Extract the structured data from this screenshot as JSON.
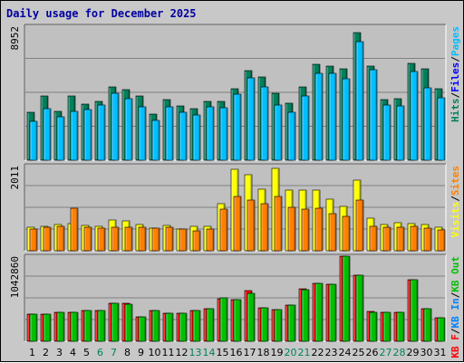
{
  "chart_data": {
    "type": "bar",
    "title": "Daily usage for December 2025",
    "days": [
      "1",
      "2",
      "3",
      "4",
      "5",
      "6",
      "7",
      "8",
      "9",
      "10",
      "11",
      "12",
      "13",
      "14",
      "15",
      "16",
      "17",
      "18",
      "19",
      "20",
      "21",
      "22",
      "23",
      "24",
      "25",
      "26",
      "27",
      "28",
      "29",
      "30",
      "31"
    ],
    "weekend_days": [
      "6",
      "7",
      "13",
      "14",
      "20",
      "21",
      "27",
      "28"
    ],
    "colors": {
      "hits": "#00805c",
      "files": "#0000ff",
      "pages": "#00c0ff",
      "visits": "#ffff00",
      "sites": "#ff8000",
      "kb_f": "#ff0000",
      "kb_in": "#0080ff",
      "kb_out": "#00c000",
      "weekday_label": "#000000",
      "weekend_label": "#00805c",
      "title": "#0000a0",
      "background": "#c8c8c8",
      "plot_background": "#c0c0c0",
      "gridline": "#808080"
    },
    "panels": [
      {
        "name": "usage",
        "ymax_label": "8952",
        "ymax": 8952,
        "legend": [
          {
            "text": "Hits",
            "color": "#00805c"
          },
          {
            "text": "/",
            "color": "#000000"
          },
          {
            "text": "Files",
            "color": "#0000ff"
          },
          {
            "text": "/",
            "color": "#000000"
          },
          {
            "text": "Pages",
            "color": "#00c0ff"
          }
        ],
        "series": [
          {
            "name": "Hits",
            "color": "#00805c",
            "values": [
              3190,
              4310,
              3240,
              4290,
              3750,
              3930,
              4880,
              4700,
              4290,
              3070,
              4050,
              3600,
              3420,
              3930,
              3960,
              4760,
              5990,
              5590,
              4470,
              3800,
              4880,
              6440,
              6280,
              6110,
              8550,
              6300,
              4070,
              4120,
              6460,
              6090,
              4780
            ]
          },
          {
            "name": "Pages",
            "color": "#00c0ff",
            "values": [
              2620,
              3470,
              2880,
              3240,
              3360,
              3670,
              4500,
              4120,
              3570,
              2660,
              3580,
              3220,
              3000,
              3570,
              3530,
              4420,
              5520,
              4890,
              3700,
              3220,
              4270,
              5830,
              5790,
              5420,
              7930,
              6020,
              3710,
              3630,
              5900,
              4860,
              4180
            ]
          }
        ]
      },
      {
        "name": "visits",
        "ymax_label": "2011",
        "ymax": 2011,
        "legend": [
          {
            "text": "Visits",
            "color": "#ffff00"
          },
          {
            "text": "/",
            "color": "#000000"
          },
          {
            "text": "Sites",
            "color": "#ff8000"
          }
        ],
        "series": [
          {
            "name": "Visits",
            "color": "#ffff00",
            "values": [
              560,
              580,
              630,
              640,
              600,
              580,
              720,
              700,
              620,
              530,
              600,
              520,
              570,
              570,
              1110,
              1920,
              1800,
              1460,
              1950,
              1430,
              1430,
              1430,
              1210,
              1040,
              1660,
              770,
              630,
              670,
              640,
              620,
              560
            ]
          },
          {
            "name": "Sites",
            "color": "#ff8000",
            "values": [
              520,
              560,
              570,
              1000,
              560,
              530,
              560,
              550,
              560,
              530,
              560,
              510,
              480,
              520,
              990,
              1290,
              1190,
              1110,
              1290,
              1020,
              990,
              1000,
              880,
              810,
              1190,
              580,
              560,
              560,
              580,
              530,
              500
            ]
          }
        ]
      },
      {
        "name": "kbytes",
        "ymax_label": "1042860",
        "ymax": 1042860,
        "legend": [
          {
            "text": "KB F",
            "color": "#ff0000"
          },
          {
            "text": "/",
            "color": "#000000"
          },
          {
            "text": "KB In",
            "color": "#0080ff"
          },
          {
            "text": "/",
            "color": "#000000"
          },
          {
            "text": "KB Out",
            "color": "#00c000"
          }
        ],
        "series": [
          {
            "name": "KB F",
            "color": "#ff0000",
            "values": [
              330000,
              330000,
              350000,
              350000,
              380000,
              380000,
              470000,
              470000,
              300000,
              380000,
              340000,
              340000,
              380000,
              400000,
              520000,
              510000,
              620000,
              410000,
              390000,
              440000,
              640000,
              710000,
              700000,
              1042860,
              810000,
              370000,
              350000,
              350000,
              750000,
              400000,
              290000
            ]
          },
          {
            "name": "KB Out",
            "color": "#00c000",
            "values": [
              330000,
              330000,
              350000,
              350000,
              380000,
              380000,
              470000,
              450000,
              300000,
              380000,
              340000,
              340000,
              380000,
              400000,
              530000,
              510000,
              590000,
              410000,
              390000,
              440000,
              630000,
              710000,
              700000,
              1042860,
              810000,
              360000,
              350000,
              350000,
              750000,
              400000,
              290000
            ]
          }
        ]
      }
    ]
  }
}
